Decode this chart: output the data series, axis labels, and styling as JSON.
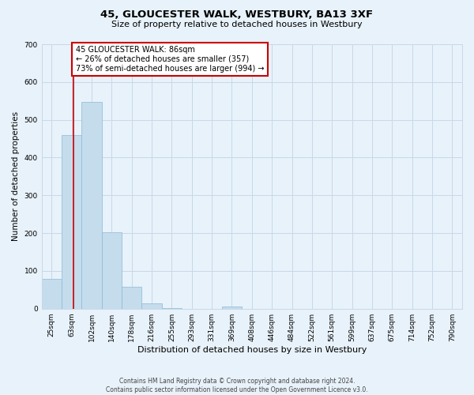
{
  "title": "45, GLOUCESTER WALK, WESTBURY, BA13 3XF",
  "subtitle": "Size of property relative to detached houses in Westbury",
  "xlabel": "Distribution of detached houses by size in Westbury",
  "ylabel": "Number of detached properties",
  "bin_labels": [
    "25sqm",
    "63sqm",
    "102sqm",
    "140sqm",
    "178sqm",
    "216sqm",
    "255sqm",
    "293sqm",
    "331sqm",
    "369sqm",
    "408sqm",
    "446sqm",
    "484sqm",
    "522sqm",
    "561sqm",
    "599sqm",
    "637sqm",
    "675sqm",
    "714sqm",
    "752sqm",
    "790sqm"
  ],
  "bar_heights": [
    78,
    460,
    548,
    202,
    57,
    14,
    2,
    0,
    0,
    5,
    0,
    0,
    0,
    0,
    0,
    0,
    0,
    0,
    0,
    0,
    0
  ],
  "bar_color": "#c5dced",
  "bar_edgecolor": "#89bad4",
  "ylim": [
    0,
    700
  ],
  "yticks": [
    0,
    100,
    200,
    300,
    400,
    500,
    600,
    700
  ],
  "property_line_x": 86,
  "bin_edges_sqm": [
    25,
    63,
    102,
    140,
    178,
    216,
    255,
    293,
    331,
    369,
    408,
    446,
    484,
    522,
    561,
    599,
    637,
    675,
    714,
    752,
    790
  ],
  "annotation_box_text": "45 GLOUCESTER WALK: 86sqm\n← 26% of detached houses are smaller (357)\n73% of semi-detached houses are larger (994) →",
  "annotation_box_color": "#ffffff",
  "annotation_box_edgecolor": "#cc0000",
  "red_line_color": "#cc0000",
  "grid_color": "#c8d8e8",
  "bg_color": "#e8f2fa",
  "footer_line1": "Contains HM Land Registry data © Crown copyright and database right 2024.",
  "footer_line2": "Contains public sector information licensed under the Open Government Licence v3.0.",
  "title_fontsize": 9.5,
  "subtitle_fontsize": 8.0,
  "ylabel_fontsize": 7.5,
  "xlabel_fontsize": 8.0,
  "tick_fontsize": 6.5,
  "annotation_fontsize": 7.0,
  "footer_fontsize": 5.5
}
